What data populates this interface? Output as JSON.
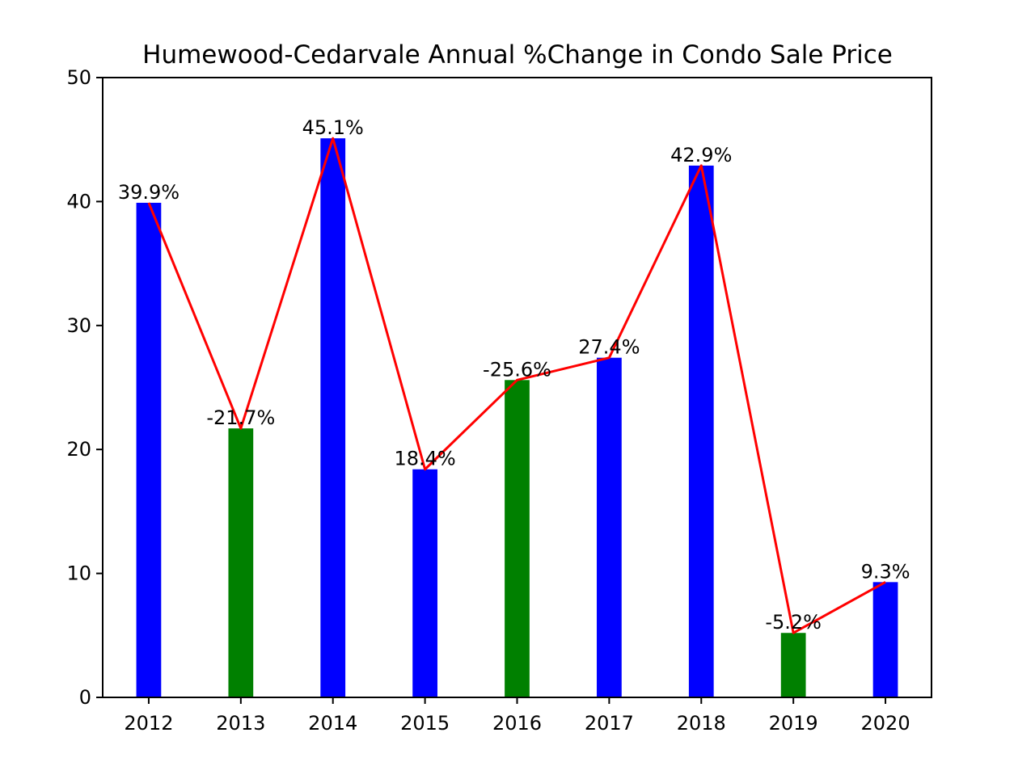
{
  "chart_data": {
    "type": "bar",
    "title": "Humewood-Cedarvale Annual %Change in Condo Sale Price",
    "xlabel": "",
    "ylabel": "",
    "categories": [
      "2012",
      "2013",
      "2014",
      "2015",
      "2016",
      "2017",
      "2018",
      "2019",
      "2020"
    ],
    "values": [
      39.9,
      21.7,
      45.1,
      18.4,
      25.6,
      27.4,
      42.9,
      5.2,
      9.3
    ],
    "signed_values": [
      39.9,
      -21.7,
      45.1,
      18.4,
      -25.6,
      27.4,
      42.9,
      -5.2,
      9.3
    ],
    "data_labels": [
      "39.9%",
      "-21.7%",
      "45.1%",
      "18.4%",
      "-25.6%",
      "27.4%",
      "42.9%",
      "-5.2%",
      "9.3%"
    ],
    "ylim": [
      0,
      50
    ],
    "yticks": [
      "0",
      "10",
      "20",
      "30",
      "40",
      "50"
    ],
    "grid": false,
    "legend": "none",
    "colors": {
      "positive_bar": "#0000ff",
      "negative_bar": "#008000",
      "line": "#ff0000",
      "axes": "#000000"
    },
    "overlay_line": {
      "type": "line",
      "values": [
        39.9,
        21.7,
        45.1,
        18.4,
        25.6,
        27.4,
        42.9,
        5.2,
        9.3
      ]
    }
  }
}
